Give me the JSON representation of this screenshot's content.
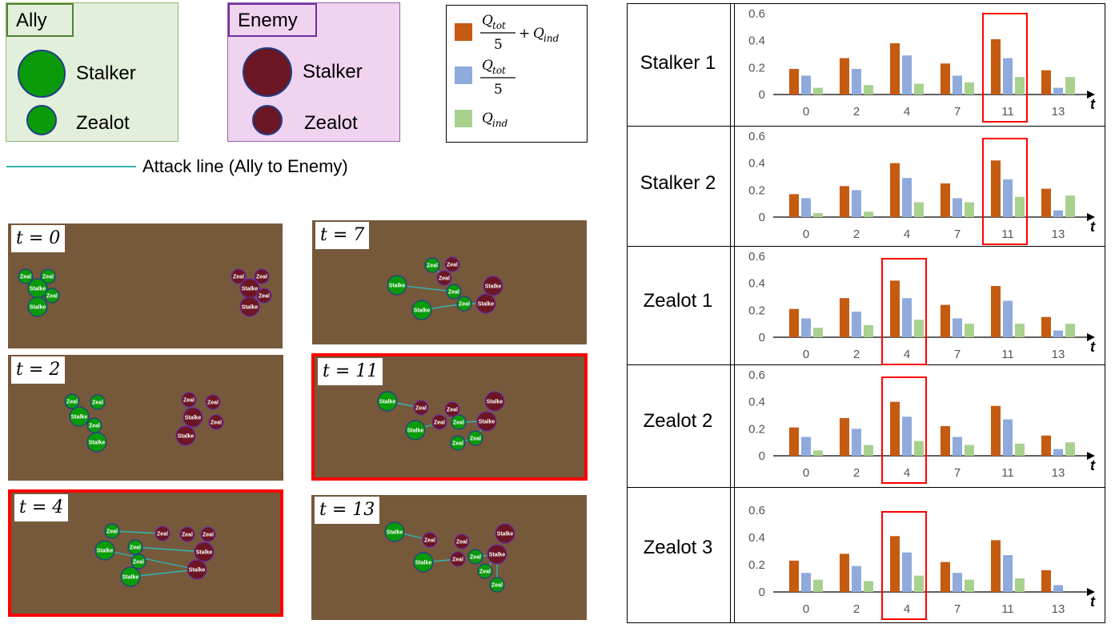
{
  "legend": {
    "ally": {
      "title": "Ally",
      "stalker": "Stalker",
      "zealot": "Zealot",
      "color": "#0a9a0a"
    },
    "enemy": {
      "title": "Enemy",
      "stalker": "Stalker",
      "zealot": "Zealot",
      "color": "#6b1622"
    },
    "attack_line_label": "Attack line (Ally to Enemy)",
    "attack_line_color": "#2fb7b0",
    "q_items": [
      {
        "color": "#c55a11"
      },
      {
        "color": "#8faadc"
      },
      {
        "color": "#a9d18e"
      }
    ]
  },
  "frames": [
    {
      "t": "t = 0",
      "highlight": false
    },
    {
      "t": "t = 2",
      "highlight": false
    },
    {
      "t": "t = 4",
      "highlight": true
    },
    {
      "t": "t = 7",
      "highlight": false
    },
    {
      "t": "t = 11",
      "highlight": true
    },
    {
      "t": "t = 13",
      "highlight": false
    }
  ],
  "unit_text": {
    "stalker": "Stalke",
    "zealot": "Zeal"
  },
  "chart_data": [
    {
      "type": "bar",
      "row_label": "Stalker 1",
      "categories": [
        "0",
        "2",
        "4",
        "7",
        "11",
        "13"
      ],
      "xlabel": "t",
      "ylim": [
        0,
        0.6
      ],
      "yticks": [
        "0",
        "0.2",
        "0.4",
        "0.6"
      ],
      "highlight": "11",
      "series": [
        {
          "values": [
            0.19,
            0.27,
            0.38,
            0.23,
            0.41,
            0.18
          ]
        },
        {
          "values": [
            0.14,
            0.19,
            0.29,
            0.14,
            0.27,
            0.05
          ]
        },
        {
          "values": [
            0.05,
            0.07,
            0.08,
            0.09,
            0.13,
            0.13
          ]
        }
      ]
    },
    {
      "type": "bar",
      "row_label": "Stalker 2",
      "categories": [
        "0",
        "2",
        "4",
        "7",
        "11",
        "13"
      ],
      "xlabel": "t",
      "ylim": [
        0,
        0.6
      ],
      "yticks": [
        "0",
        "0.2",
        "0.4",
        "0.6"
      ],
      "highlight": "11",
      "series": [
        {
          "values": [
            0.17,
            0.23,
            0.4,
            0.25,
            0.42,
            0.21
          ]
        },
        {
          "values": [
            0.14,
            0.2,
            0.29,
            0.14,
            0.28,
            0.05
          ]
        },
        {
          "values": [
            0.03,
            0.04,
            0.11,
            0.11,
            0.15,
            0.16
          ]
        }
      ]
    },
    {
      "type": "bar",
      "row_label": "Zealot 1",
      "categories": [
        "0",
        "2",
        "4",
        "7",
        "11",
        "13"
      ],
      "xlabel": "t",
      "ylim": [
        0,
        0.6
      ],
      "yticks": [
        "0",
        "0.2",
        "0.4",
        "0.6"
      ],
      "highlight": "4",
      "series": [
        {
          "values": [
            0.21,
            0.29,
            0.42,
            0.24,
            0.38,
            0.15
          ]
        },
        {
          "values": [
            0.14,
            0.19,
            0.29,
            0.14,
            0.27,
            0.05
          ]
        },
        {
          "values": [
            0.07,
            0.09,
            0.13,
            0.1,
            0.1,
            0.1
          ]
        }
      ]
    },
    {
      "type": "bar",
      "row_label": "Zealot 2",
      "categories": [
        "0",
        "2",
        "4",
        "7",
        "11",
        "13"
      ],
      "xlabel": "t",
      "ylim": [
        0,
        0.6
      ],
      "yticks": [
        "0",
        "0.2",
        "0.4",
        "0.6"
      ],
      "highlight": "4",
      "series": [
        {
          "values": [
            0.21,
            0.28,
            0.4,
            0.22,
            0.37,
            0.15
          ]
        },
        {
          "values": [
            0.14,
            0.2,
            0.29,
            0.14,
            0.27,
            0.05
          ]
        },
        {
          "values": [
            0.04,
            0.08,
            0.11,
            0.08,
            0.09,
            0.1
          ]
        }
      ]
    },
    {
      "type": "bar",
      "row_label": "Zealot 3",
      "categories": [
        "0",
        "2",
        "4",
        "7",
        "11",
        "13"
      ],
      "xlabel": "t",
      "ylim": [
        0,
        0.6
      ],
      "yticks": [
        "0",
        "0.2",
        "0.4",
        "0.6"
      ],
      "highlight": "4",
      "series": [
        {
          "values": [
            0.23,
            0.28,
            0.41,
            0.22,
            0.38,
            0.16
          ]
        },
        {
          "values": [
            0.14,
            0.19,
            0.29,
            0.14,
            0.27,
            0.05
          ]
        },
        {
          "values": [
            0.09,
            0.08,
            0.12,
            0.09,
            0.1,
            0.0
          ]
        }
      ]
    }
  ]
}
